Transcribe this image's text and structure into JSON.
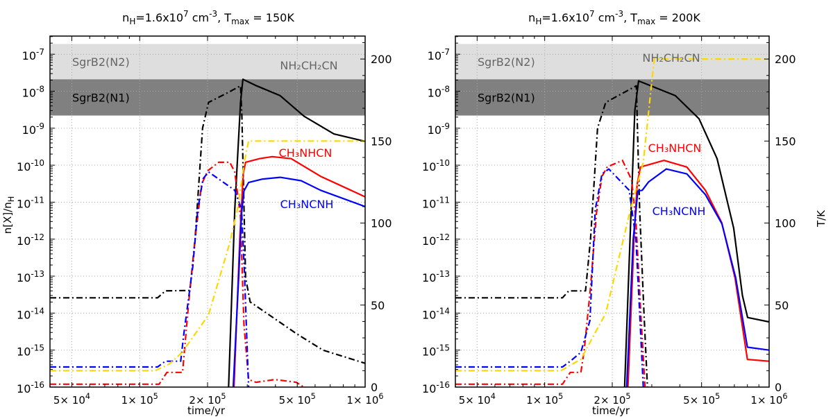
{
  "chart_data": [
    {
      "type": "line",
      "title": [
        {
          "t": "n"
        },
        {
          "t": "H",
          "sub": true
        },
        {
          "t": "=1.6x10"
        },
        {
          "t": "7",
          "sup": true
        },
        {
          "t": " cm"
        },
        {
          "t": "-3",
          "sup": true
        },
        {
          "t": ", T"
        },
        {
          "t": "max",
          "sub": true
        },
        {
          "t": " = 150K"
        }
      ],
      "xlabel": "time/yr",
      "ylabel": [
        {
          "t": "n[X]/n"
        },
        {
          "t": "H",
          "sub": true
        }
      ],
      "y2label": "",
      "xscale": "log",
      "yscale": "log",
      "xlim": [
        40000,
        1000000
      ],
      "ylim": [
        1e-16,
        3.1e-07
      ],
      "y2lim": [
        0,
        214
      ],
      "xticks": [
        50000,
        100000,
        200000,
        500000,
        1000000
      ],
      "yticks": [
        1e-16,
        1e-15,
        1e-14,
        1e-13,
        1e-12,
        1e-11,
        1e-10,
        1e-09,
        1e-08,
        1e-07
      ],
      "y2ticks": [
        0,
        50,
        100,
        150,
        200
      ],
      "grid": true,
      "bands": [
        {
          "label": "SgrB2(N2)",
          "range": [
            2.1e-08,
            1.9e-07
          ],
          "color": "#dedede",
          "text_color": "#666666"
        },
        {
          "label": "SgrB2(N1)",
          "range": [
            2.2e-09,
            2.1e-08
          ],
          "color": "#808080",
          "text_color": "#000000"
        }
      ],
      "annotations": [
        {
          "text": "NH₂CH₂CN",
          "color": "#666666"
        },
        {
          "text": "CH₃NHCN",
          "color": "#ff0000"
        },
        {
          "text": "CH₃NCNH",
          "color": "#0000ff"
        }
      ],
      "series": [
        {
          "label_ref": "NH₂CH₂CN",
          "color": "#000000",
          "style": "solid",
          "axis": "left",
          "points": [
            [
              248000,
              1e-16
            ],
            [
              264000,
              6.3e-12
            ],
            [
              280000,
              5e-09
            ],
            [
              287000,
              2.1e-08
            ],
            [
              330000,
              1.4e-08
            ],
            [
              420000,
              7.6e-09
            ],
            [
              536000,
              2.1e-09
            ],
            [
              727000,
              7e-10
            ],
            [
              1000000,
              4.4e-10
            ]
          ]
        },
        {
          "label_ref": "NH₂CH₂CN",
          "color": "#000000",
          "style": "dashdot",
          "axis": "left",
          "points": [
            [
              40000,
              2.6e-14
            ],
            [
              120000,
              2.6e-14
            ],
            [
              130000,
              4e-14
            ],
            [
              167000,
              4.1e-14
            ],
            [
              176000,
              1e-12
            ],
            [
              190000,
              1e-09
            ],
            [
              202000,
              5e-09
            ],
            [
              245000,
              9e-09
            ],
            [
              280000,
              1.4e-08
            ],
            [
              284000,
              2e-09
            ],
            [
              295000,
              9e-14
            ],
            [
              309000,
              2e-14
            ],
            [
              376000,
              8.9e-15
            ],
            [
              495000,
              2.8e-15
            ],
            [
              650000,
              1e-15
            ],
            [
              1000000,
              4.4e-16
            ]
          ]
        },
        {
          "label_ref": "CH₃NHCN",
          "color": "#ff0000",
          "style": "solid",
          "axis": "left",
          "points": [
            [
              262000,
              1e-16
            ],
            [
              278000,
              1e-12
            ],
            [
              288000,
              6e-11
            ],
            [
              295000,
              1.2e-10
            ],
            [
              340000,
              1.5e-10
            ],
            [
              387000,
              1.7e-10
            ],
            [
              470000,
              1.5e-10
            ],
            [
              635000,
              5e-11
            ],
            [
              1000000,
              1.4e-11
            ]
          ]
        },
        {
          "label_ref": "CH₃NHCN",
          "color": "#ff0000",
          "style": "dashdot",
          "axis": "left",
          "points": [
            [
              40000,
              1.2e-16
            ],
            [
              122000,
              1.2e-16
            ],
            [
              132000,
              2.5e-16
            ],
            [
              155000,
              2.5e-16
            ],
            [
              158000,
              1e-15
            ],
            [
              165000,
              2e-14
            ],
            [
              176000,
              1e-12
            ],
            [
              188000,
              3e-11
            ],
            [
              200000,
              7e-11
            ],
            [
              224000,
              1.2e-10
            ],
            [
              251000,
              1.2e-10
            ],
            [
              264000,
              6.6e-11
            ],
            [
              280000,
              4e-12
            ],
            [
              290000,
              5e-15
            ],
            [
              304000,
              1.6e-16
            ],
            [
              328000,
              1.35e-16
            ],
            [
              398000,
              1.6e-16
            ],
            [
              495000,
              1.35e-16
            ],
            [
              535000,
              1e-16
            ]
          ]
        },
        {
          "label_ref": "CH₃NCNH",
          "color": "#0000ff",
          "style": "solid",
          "axis": "left",
          "points": [
            [
              260000,
              1e-16
            ],
            [
              275000,
              1e-13
            ],
            [
              283000,
              5e-12
            ],
            [
              290000,
              2e-11
            ],
            [
              304000,
              3.4e-11
            ],
            [
              350000,
              4.2e-11
            ],
            [
              420000,
              4.7e-11
            ],
            [
              520000,
              3.8e-11
            ],
            [
              635000,
              2.1e-11
            ],
            [
              1000000,
              7.6e-12
            ]
          ]
        },
        {
          "label_ref": "CH₃NCNH",
          "color": "#0000ff",
          "style": "dashdot",
          "axis": "left",
          "points": [
            [
              40000,
              3.5e-16
            ],
            [
              120000,
              3.5e-16
            ],
            [
              130000,
              5e-16
            ],
            [
              152000,
              5e-16
            ],
            [
              157000,
              2.8e-15
            ],
            [
              172000,
              1.8e-13
            ],
            [
              181000,
              6.3e-12
            ],
            [
              191000,
              4.3e-11
            ],
            [
              202000,
              6.6e-11
            ],
            [
              264000,
              2.1e-11
            ],
            [
              283000,
              6.3e-12
            ],
            [
              292000,
              9e-14
            ],
            [
              304000,
              1e-16
            ]
          ]
        },
        {
          "color": "#ffd700",
          "style": "dashdot",
          "axis": "right",
          "points": [
            [
              40000,
              10
            ],
            [
              117000,
              10
            ],
            [
              135000,
              14
            ],
            [
              154000,
              21
            ],
            [
              202000,
              44
            ],
            [
              251000,
              88
            ],
            [
              272000,
              109
            ],
            [
              291000,
              137
            ],
            [
              304000,
              150
            ],
            [
              1000000,
              150
            ]
          ]
        }
      ]
    },
    {
      "type": "line",
      "title": [
        {
          "t": "n"
        },
        {
          "t": "H",
          "sub": true
        },
        {
          "t": "=1.6x10"
        },
        {
          "t": "7",
          "sup": true
        },
        {
          "t": " cm"
        },
        {
          "t": "-3",
          "sup": true
        },
        {
          "t": ", T"
        },
        {
          "t": "max",
          "sub": true
        },
        {
          "t": " = 200K"
        }
      ],
      "xlabel": "time/yr",
      "ylabel": [],
      "y2label": "T/K",
      "xscale": "log",
      "yscale": "log",
      "xlim": [
        40000,
        1000000
      ],
      "ylim": [
        1e-16,
        3.1e-07
      ],
      "y2lim": [
        0,
        214
      ],
      "xticks": [
        50000,
        100000,
        200000,
        500000,
        1000000
      ],
      "yticks": [
        1e-16,
        1e-15,
        1e-14,
        1e-13,
        1e-12,
        1e-11,
        1e-10,
        1e-09,
        1e-08,
        1e-07
      ],
      "y2ticks": [
        0,
        50,
        100,
        150,
        200
      ],
      "grid": true,
      "bands": [
        {
          "label": "SgrB2(N2)",
          "range": [
            2.1e-08,
            1.9e-07
          ],
          "color": "#dedede",
          "text_color": "#666666"
        },
        {
          "label": "SgrB2(N1)",
          "range": [
            2.2e-09,
            2.1e-08
          ],
          "color": "#808080",
          "text_color": "#000000"
        }
      ],
      "annotations": [
        {
          "text": "NH₂CH₂CN",
          "color": "#666666"
        },
        {
          "text": "CH₃NHCN",
          "color": "#ff0000"
        },
        {
          "text": "CH₃NCNH",
          "color": "#0000ff"
        }
      ],
      "series": [
        {
          "label_ref": "NH₂CH₂CN",
          "color": "#000000",
          "style": "solid",
          "axis": "left",
          "points": [
            [
              227000,
              1e-16
            ],
            [
              240000,
              1e-12
            ],
            [
              252000,
              3e-09
            ],
            [
              262000,
              1.9e-08
            ],
            [
              382000,
              7.6e-09
            ],
            [
              487000,
              1.8e-09
            ],
            [
              586000,
              1.5e-10
            ],
            [
              695000,
              2e-12
            ],
            [
              760000,
              3e-14
            ],
            [
              802000,
              7.6e-15
            ],
            [
              1000000,
              5.8e-15
            ]
          ]
        },
        {
          "label_ref": "NH₂CH₂CN",
          "color": "#000000",
          "style": "dashdot",
          "axis": "left",
          "points": [
            [
              40000,
              2.6e-14
            ],
            [
              120000,
              2.6e-14
            ],
            [
              128000,
              4e-14
            ],
            [
              152000,
              4e-14
            ],
            [
              160000,
              1e-12
            ],
            [
              172000,
              1e-09
            ],
            [
              187000,
              5e-09
            ],
            [
              256000,
              1.4e-08
            ],
            [
              259000,
              1e-09
            ],
            [
              265000,
              6e-12
            ],
            [
              277000,
              1e-14
            ],
            [
              287000,
              1e-16
            ]
          ]
        },
        {
          "label_ref": "CH₃NHCN",
          "color": "#ff0000",
          "style": "solid",
          "axis": "left",
          "points": [
            [
              235000,
              1e-16
            ],
            [
              250000,
              1e-12
            ],
            [
              258000,
              3e-11
            ],
            [
              267000,
              8.9e-11
            ],
            [
              340000,
              1.35e-10
            ],
            [
              430000,
              8.9e-11
            ],
            [
              520000,
              2.1e-11
            ],
            [
              615000,
              2.8e-12
            ],
            [
              705000,
              8.9e-14
            ],
            [
              800000,
              5.6e-16
            ],
            [
              1000000,
              5e-16
            ]
          ]
        },
        {
          "label_ref": "CH₃NHCN",
          "color": "#ff0000",
          "style": "dashdot",
          "axis": "left",
          "points": [
            [
              40000,
              1.2e-16
            ],
            [
              120000,
              1.2e-16
            ],
            [
              130000,
              2.5e-16
            ],
            [
              145000,
              2.5e-16
            ],
            [
              150000,
              1e-15
            ],
            [
              160000,
              5e-14
            ],
            [
              170000,
              5e-12
            ],
            [
              180000,
              5e-11
            ],
            [
              190000,
              9e-11
            ],
            [
              222000,
              1.35e-10
            ],
            [
              244000,
              4e-11
            ],
            [
              255000,
              3e-12
            ],
            [
              268000,
              1e-14
            ],
            [
              280000,
              1e-16
            ]
          ]
        },
        {
          "label_ref": "CH₃NCNH",
          "color": "#0000ff",
          "style": "solid",
          "axis": "left",
          "points": [
            [
              232000,
              1e-16
            ],
            [
              248000,
              1e-12
            ],
            [
              260000,
              2e-11
            ],
            [
              272000,
              2.1e-11
            ],
            [
              290000,
              3.5e-11
            ],
            [
              348000,
              7.9e-11
            ],
            [
              430000,
              5.8e-11
            ],
            [
              520000,
              1.6e-11
            ],
            [
              616000,
              2.6e-12
            ],
            [
              710000,
              8.9e-14
            ],
            [
              800000,
              1.2e-15
            ],
            [
              1000000,
              1e-15
            ]
          ]
        },
        {
          "label_ref": "CH₃NCNH",
          "color": "#0000ff",
          "style": "dashdot",
          "axis": "left",
          "points": [
            [
              40000,
              3.5e-16
            ],
            [
              120000,
              3.5e-16
            ],
            [
              130000,
              5e-16
            ],
            [
              145000,
              8.7e-16
            ],
            [
              159000,
              6.3e-15
            ],
            [
              168000,
              6.3e-12
            ],
            [
              180000,
              5.8e-11
            ],
            [
              193000,
              7.9e-11
            ],
            [
              238000,
              2.1e-11
            ],
            [
              255000,
              1e-12
            ],
            [
              265000,
              1e-14
            ],
            [
              275000,
              1e-16
            ]
          ]
        },
        {
          "color": "#ffd700",
          "style": "dashdot",
          "axis": "right",
          "points": [
            [
              40000,
              10
            ],
            [
              118000,
              10
            ],
            [
              145000,
              17
            ],
            [
              187000,
              45
            ],
            [
              238000,
              105
            ],
            [
              275000,
              137
            ],
            [
              302000,
              190
            ],
            [
              308000,
              200
            ],
            [
              1000000,
              200
            ]
          ]
        }
      ]
    }
  ]
}
